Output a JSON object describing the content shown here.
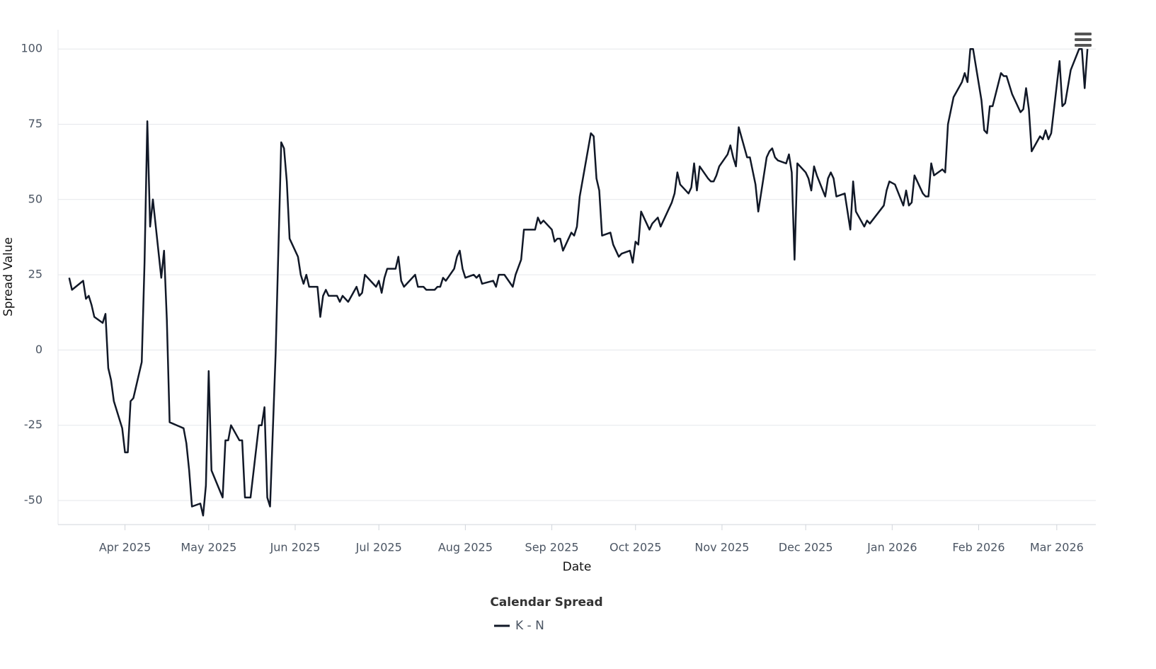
{
  "chart_data": {
    "type": "line",
    "xlabel": "Date",
    "ylabel": "Spread Value",
    "legend_title": "Calendar Spread",
    "legend": "bottom",
    "grid": true,
    "ylim": [
      -58,
      106.4
    ],
    "yticks": [
      -50,
      -25,
      0,
      25,
      50,
      75,
      100
    ],
    "xlim": [
      "2025-03-08",
      "2026-03-15"
    ],
    "xticks": [
      {
        "value": "2025-04-01",
        "label": "Apr 2025"
      },
      {
        "value": "2025-05-01",
        "label": "May 2025"
      },
      {
        "value": "2025-06-01",
        "label": "Jun 2025"
      },
      {
        "value": "2025-07-01",
        "label": "Jul 2025"
      },
      {
        "value": "2025-08-01",
        "label": "Aug 2025"
      },
      {
        "value": "2025-09-01",
        "label": "Sep 2025"
      },
      {
        "value": "2025-10-01",
        "label": "Oct 2025"
      },
      {
        "value": "2025-11-01",
        "label": "Nov 2025"
      },
      {
        "value": "2025-12-01",
        "label": "Dec 2025"
      },
      {
        "value": "2026-01-01",
        "label": "Jan 2026"
      },
      {
        "value": "2026-02-01",
        "label": "Feb 2026"
      },
      {
        "value": "2026-03-01",
        "label": "Mar 2026"
      }
    ],
    "x": [
      "2025-03-12",
      "2025-03-13",
      "2025-03-17",
      "2025-03-18",
      "2025-03-19",
      "2025-03-20",
      "2025-03-21",
      "2025-03-24",
      "2025-03-25",
      "2025-03-26",
      "2025-03-27",
      "2025-03-28",
      "2025-03-31",
      "2025-04-01",
      "2025-04-02",
      "2025-04-03",
      "2025-04-04",
      "2025-04-07",
      "2025-04-08",
      "2025-04-09",
      "2025-04-10",
      "2025-04-11",
      "2025-04-14",
      "2025-04-15",
      "2025-04-16",
      "2025-04-17",
      "2025-04-22",
      "2025-04-23",
      "2025-04-24",
      "2025-04-25",
      "2025-04-28",
      "2025-04-29",
      "2025-04-30",
      "2025-05-01",
      "2025-05-02",
      "2025-05-06",
      "2025-05-07",
      "2025-05-08",
      "2025-05-09",
      "2025-05-12",
      "2025-05-13",
      "2025-05-14",
      "2025-05-16",
      "2025-05-19",
      "2025-05-20",
      "2025-05-21",
      "2025-05-22",
      "2025-05-23",
      "2025-05-25",
      "2025-05-27",
      "2025-05-28",
      "2025-05-29",
      "2025-05-30",
      "2025-06-02",
      "2025-06-03",
      "2025-06-04",
      "2025-06-05",
      "2025-06-06",
      "2025-06-09",
      "2025-06-10",
      "2025-06-11",
      "2025-06-12",
      "2025-06-13",
      "2025-06-16",
      "2025-06-17",
      "2025-06-18",
      "2025-06-20",
      "2025-06-23",
      "2025-06-24",
      "2025-06-25",
      "2025-06-26",
      "2025-06-30",
      "2025-07-01",
      "2025-07-02",
      "2025-07-03",
      "2025-07-04",
      "2025-07-07",
      "2025-07-08",
      "2025-07-09",
      "2025-07-10",
      "2025-07-14",
      "2025-07-15",
      "2025-07-17",
      "2025-07-18",
      "2025-07-21",
      "2025-07-22",
      "2025-07-23",
      "2025-07-24",
      "2025-07-25",
      "2025-07-28",
      "2025-07-29",
      "2025-07-30",
      "2025-07-31",
      "2025-08-01",
      "2025-08-04",
      "2025-08-05",
      "2025-08-06",
      "2025-08-07",
      "2025-08-11",
      "2025-08-12",
      "2025-08-13",
      "2025-08-15",
      "2025-08-18",
      "2025-08-19",
      "2025-08-21",
      "2025-08-22",
      "2025-08-26",
      "2025-08-27",
      "2025-08-28",
      "2025-08-29",
      "2025-09-01",
      "2025-09-02",
      "2025-09-03",
      "2025-09-04",
      "2025-09-05",
      "2025-09-08",
      "2025-09-09",
      "2025-09-10",
      "2025-09-11",
      "2025-09-15",
      "2025-09-16",
      "2025-09-17",
      "2025-09-18",
      "2025-09-19",
      "2025-09-22",
      "2025-09-23",
      "2025-09-24",
      "2025-09-25",
      "2025-09-26",
      "2025-09-29",
      "2025-09-30",
      "2025-10-01",
      "2025-10-02",
      "2025-10-03",
      "2025-10-06",
      "2025-10-07",
      "2025-10-09",
      "2025-10-10",
      "2025-10-14",
      "2025-10-15",
      "2025-10-16",
      "2025-10-17",
      "2025-10-20",
      "2025-10-21",
      "2025-10-22",
      "2025-10-23",
      "2025-10-24",
      "2025-10-27",
      "2025-10-28",
      "2025-10-29",
      "2025-10-30",
      "2025-10-31",
      "2025-11-03",
      "2025-11-04",
      "2025-11-05",
      "2025-11-06",
      "2025-11-07",
      "2025-11-10",
      "2025-11-11",
      "2025-11-13",
      "2025-11-14",
      "2025-11-17",
      "2025-11-18",
      "2025-11-19",
      "2025-11-20",
      "2025-11-21",
      "2025-11-24",
      "2025-11-25",
      "2025-11-26",
      "2025-11-27",
      "2025-11-28",
      "2025-12-01",
      "2025-12-02",
      "2025-12-03",
      "2025-12-04",
      "2025-12-05",
      "2025-12-08",
      "2025-12-09",
      "2025-12-10",
      "2025-12-11",
      "2025-12-12",
      "2025-12-15",
      "2025-12-17",
      "2025-12-18",
      "2025-12-19",
      "2025-12-22",
      "2025-12-23",
      "2025-12-24",
      "2025-12-29",
      "2025-12-30",
      "2025-12-31",
      "2026-01-02",
      "2026-01-05",
      "2026-01-06",
      "2026-01-07",
      "2026-01-08",
      "2026-01-09",
      "2026-01-12",
      "2026-01-13",
      "2026-01-14",
      "2026-01-15",
      "2026-01-16",
      "2026-01-19",
      "2026-01-20",
      "2026-01-21",
      "2026-01-23",
      "2026-01-26",
      "2026-01-27",
      "2026-01-28",
      "2026-01-29",
      "2026-01-30",
      "2026-02-02",
      "2026-02-03",
      "2026-02-04",
      "2026-02-05",
      "2026-02-06",
      "2026-02-09",
      "2026-02-10",
      "2026-02-11",
      "2026-02-13",
      "2026-02-16",
      "2026-02-17",
      "2026-02-18",
      "2026-02-19",
      "2026-02-20",
      "2026-02-23",
      "2026-02-24",
      "2026-02-25",
      "2026-02-26",
      "2026-02-27",
      "2026-03-02",
      "2026-03-03",
      "2026-03-04",
      "2026-03-06",
      "2026-03-09",
      "2026-03-10",
      "2026-03-11",
      "2026-03-12"
    ],
    "series": [
      {
        "name": "K - N",
        "color": "#111827",
        "values": [
          24,
          20,
          23,
          17,
          18,
          15,
          11,
          9,
          12,
          -6,
          -10,
          -17,
          -26,
          -34,
          -34,
          -17,
          -16,
          -4,
          29,
          76,
          41,
          50,
          24,
          33,
          10,
          -24,
          -26,
          -31,
          -40,
          -52,
          -51,
          -55,
          -45,
          -7,
          -40,
          -49,
          -30,
          -30,
          -25,
          -30,
          -30,
          -49,
          -49,
          -25,
          -25,
          -19,
          -49,
          -52,
          -1,
          69,
          67,
          56,
          37,
          31,
          25,
          22,
          25,
          21,
          21,
          11,
          18,
          20,
          18,
          18,
          16,
          18,
          16,
          21,
          18,
          19,
          25,
          21,
          23,
          19,
          24,
          27,
          27,
          31,
          23,
          21,
          25,
          21,
          21,
          20,
          20,
          21,
          21,
          24,
          23,
          27,
          31,
          33,
          27,
          24,
          25,
          24,
          25,
          22,
          23,
          21,
          25,
          25,
          21,
          25,
          30,
          40,
          40,
          44,
          42,
          43,
          40,
          36,
          37,
          37,
          33,
          39,
          38,
          41,
          51,
          72,
          71,
          57,
          53,
          38,
          39,
          35,
          33,
          31,
          32,
          33,
          29,
          36,
          35,
          46,
          40,
          42,
          44,
          41,
          49,
          52,
          59,
          55,
          52,
          54,
          62,
          53,
          61,
          57,
          56,
          56,
          58,
          61,
          65,
          68,
          64,
          61,
          74,
          64,
          64,
          55,
          46,
          64,
          66,
          67,
          64,
          63,
          62,
          65,
          59,
          30,
          62,
          59,
          57,
          53,
          61,
          58,
          51,
          57,
          59,
          57,
          51,
          52,
          40,
          56,
          46,
          41,
          43,
          42,
          48,
          53,
          56,
          55,
          48,
          53,
          48,
          49,
          58,
          52,
          51,
          51,
          62,
          58,
          60,
          59,
          75,
          84,
          89,
          92,
          89,
          100,
          100,
          83,
          73,
          72,
          81,
          81,
          92,
          91,
          91,
          85,
          79,
          80,
          87,
          80,
          66,
          71,
          70,
          73,
          70,
          72,
          96,
          81,
          82,
          93,
          100,
          100,
          87,
          100
        ]
      }
    ]
  }
}
